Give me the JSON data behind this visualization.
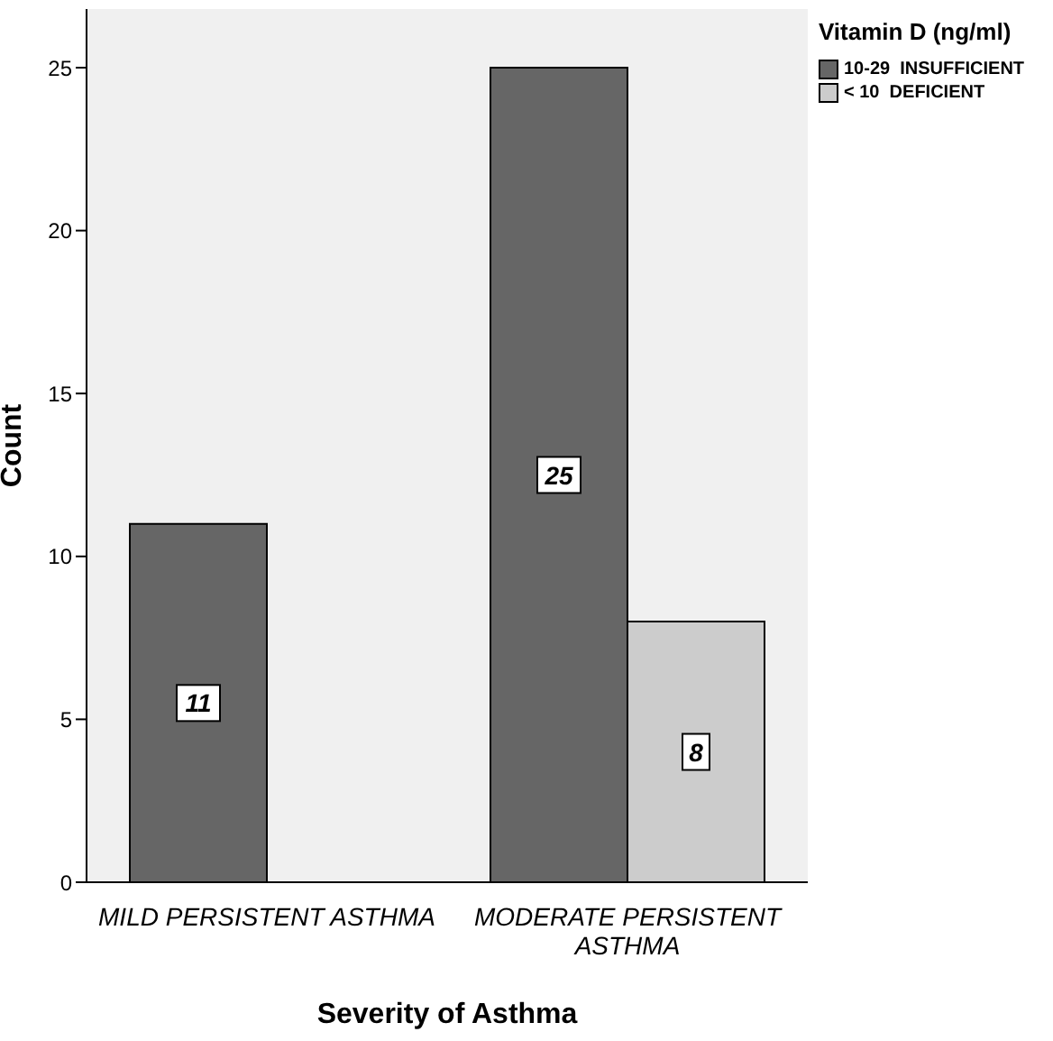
{
  "chart_data": {
    "type": "bar",
    "xlabel": "Severity of Asthma",
    "ylabel": "Count",
    "legend_title": "Vitamin D (ng/ml)",
    "categories": [
      "MILD PERSISTENT ASTHMA",
      "MODERATE PERSISTENT ASTHMA"
    ],
    "series": [
      {
        "name": "10-29  INSUFFICIENT",
        "color": "#666666",
        "values": [
          11,
          25
        ]
      },
      {
        "name": "< 10  DEFICIENT",
        "color": "#cccccc",
        "values": [
          null,
          8
        ]
      }
    ],
    "ylim": [
      0,
      26.8
    ],
    "yticks": [
      0,
      5,
      10,
      15,
      20,
      25
    ],
    "data_labels": true,
    "legend": "top right",
    "grid": false
  }
}
